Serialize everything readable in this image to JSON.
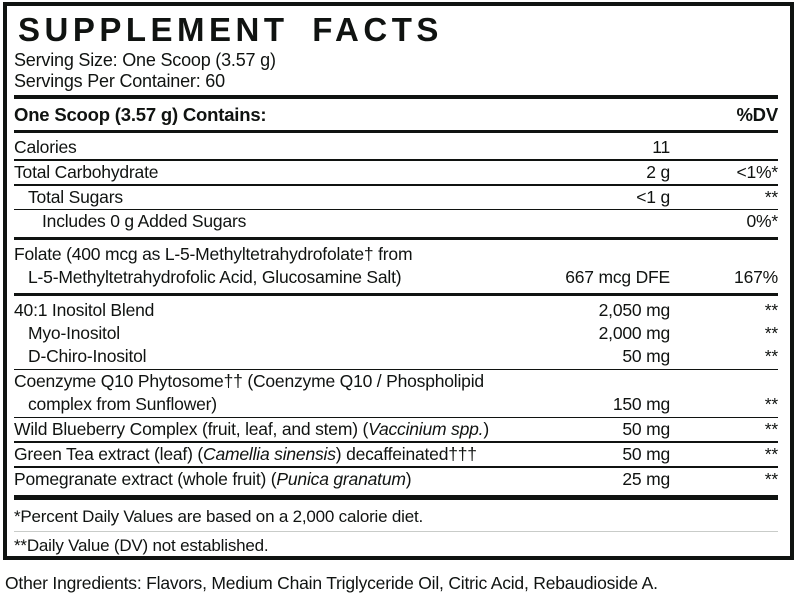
{
  "panel": {
    "title": "SUPPLEMENT FACTS",
    "serving_size": "Serving Size: One Scoop (3.57 g)",
    "servings_per_container": "Servings Per Container: 60",
    "header": {
      "contains_label": "One Scoop (3.57 g) Contains:",
      "dv_label": "%DV"
    },
    "rows": [
      {
        "name": "calories",
        "lines": [
          {
            "indent": 0,
            "segments": [
              {
                "t": "Calories"
              }
            ]
          }
        ],
        "amount": "11",
        "dv": "",
        "divider_after": "thin"
      },
      {
        "name": "total-carbohydrate",
        "lines": [
          {
            "indent": 0,
            "segments": [
              {
                "t": "Total Carbohydrate"
              }
            ]
          }
        ],
        "amount": "2 g",
        "dv": "<1%*",
        "divider_after": "thin"
      },
      {
        "name": "total-sugars",
        "lines": [
          {
            "indent": 1,
            "segments": [
              {
                "t": "Total Sugars"
              }
            ]
          }
        ],
        "amount": "<1 g",
        "dv": "**",
        "divider_after": "thin"
      },
      {
        "name": "added-sugars",
        "lines": [
          {
            "indent": 2,
            "segments": [
              {
                "t": "Includes 0 g Added Sugars"
              }
            ]
          }
        ],
        "amount": "",
        "dv": "0%*",
        "divider_after": "medium"
      },
      {
        "name": "folate",
        "lines": [
          {
            "indent": 0,
            "segments": [
              {
                "t": "Folate (400 mcg as L-5-Methyltetrahydrofolate† from"
              }
            ]
          },
          {
            "indent": 1,
            "segments": [
              {
                "t": "L-5-Methyltetrahydrofolic Acid, Glucosamine Salt)"
              }
            ]
          }
        ],
        "amount": "667 mcg DFE",
        "dv": "167%",
        "divider_after": "medium"
      },
      {
        "name": "inositol-blend",
        "lines": [
          {
            "indent": 0,
            "segments": [
              {
                "t": "40:1 Inositol Blend"
              }
            ]
          }
        ],
        "amount": "2,050 mg",
        "dv": "**",
        "divider_after": "none"
      },
      {
        "name": "myo-inositol",
        "lines": [
          {
            "indent": 1,
            "segments": [
              {
                "t": "Myo-Inositol"
              }
            ]
          }
        ],
        "amount": "2,000 mg",
        "dv": "**",
        "divider_after": "none"
      },
      {
        "name": "d-chiro-inositol",
        "lines": [
          {
            "indent": 1,
            "segments": [
              {
                "t": "D-Chiro-Inositol"
              }
            ]
          }
        ],
        "amount": "50 mg",
        "dv": "**",
        "divider_after": "thin"
      },
      {
        "name": "coenzyme-q10-phytosome",
        "lines": [
          {
            "indent": 0,
            "segments": [
              {
                "t": "Coenzyme Q10 Phytosome†† (Coenzyme Q10 / Phospholipid"
              }
            ]
          },
          {
            "indent": 1,
            "segments": [
              {
                "t": "complex from Sunflower)"
              }
            ]
          }
        ],
        "amount": "150 mg",
        "dv": "**",
        "divider_after": "thin"
      },
      {
        "name": "wild-blueberry-complex",
        "lines": [
          {
            "indent": 0,
            "segments": [
              {
                "t": "Wild Blueberry Complex (fruit, leaf, and stem) ("
              },
              {
                "t": "Vaccinium spp.",
                "i": true
              },
              {
                "t": ")"
              }
            ]
          }
        ],
        "amount": "50 mg",
        "dv": "**",
        "divider_after": "thin"
      },
      {
        "name": "green-tea-extract",
        "lines": [
          {
            "indent": 0,
            "segments": [
              {
                "t": "Green Tea extract (leaf) ("
              },
              {
                "t": "Camellia sinensis",
                "i": true
              },
              {
                "t": ") decaffeinated†††"
              }
            ]
          }
        ],
        "amount": "50 mg",
        "dv": "**",
        "divider_after": "thin"
      },
      {
        "name": "pomegranate-extract",
        "lines": [
          {
            "indent": 0,
            "segments": [
              {
                "t": "Pomegranate extract (whole fruit) ("
              },
              {
                "t": "Punica granatum",
                "i": true
              },
              {
                "t": ")"
              }
            ]
          }
        ],
        "amount": "25 mg",
        "dv": "**",
        "divider_after": "none"
      }
    ],
    "footnotes": [
      "*Percent Daily Values are based on a 2,000 calorie diet.",
      "**Daily Value (DV) not established."
    ]
  },
  "other_ingredients": "Other Ingredients: Flavors, Medium Chain Triglyceride Oil, Citric Acid, Rebaudioside A.",
  "colors": {
    "text": "#101311",
    "border": "#101311"
  }
}
